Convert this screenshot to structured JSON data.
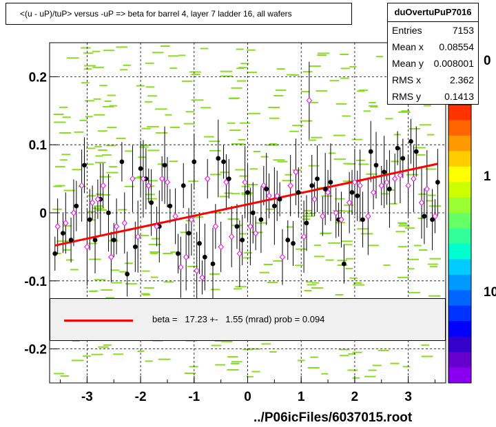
{
  "title": "<(u - uP)/tuP> versus  -uP => beta for barrel 4, layer 7 ladder 16, all wafers",
  "stats": {
    "name": "duOvertuPuP7016",
    "rows": [
      {
        "label": "Entries",
        "value": "7153"
      },
      {
        "label": "Mean x",
        "value": "0.08554"
      },
      {
        "label": "Mean y",
        "value": "0.008001"
      },
      {
        "label": "RMS x",
        "value": "2.362"
      },
      {
        "label": "RMS y",
        "value": "0.1413"
      }
    ]
  },
  "legend": {
    "text": "beta =   17.23 +-   1.55 (mrad) prob = 0.094",
    "line_color": "#ff0000"
  },
  "footer": "../P06icFiles/6037015.root",
  "chart_data": {
    "type": "scatter",
    "xlim": [
      -3.7,
      3.7
    ],
    "ylim": [
      -0.25,
      0.25
    ],
    "xticks": [
      -3,
      -2,
      -1,
      0,
      1,
      2,
      3
    ],
    "xtick_labels": [
      "-3",
      "-2",
      "-1",
      "0",
      "1",
      "2",
      "3"
    ],
    "yticks": [
      -0.2,
      -0.1,
      0,
      0.1,
      0.2
    ],
    "ytick_labels": [
      "-0.2",
      "-0.1",
      "0",
      "0.1",
      "0.2"
    ],
    "grid": true,
    "colorbar_labels": [
      "0",
      "1",
      "10"
    ],
    "fit_line": {
      "color": "#ff0000",
      "x": [
        -3.6,
        3.55
      ],
      "y": [
        -0.048,
        0.072
      ]
    },
    "series": [
      {
        "marker": "filled-circle",
        "color": "#000000",
        "x": [
          -3.6,
          -3.45,
          -3.3,
          -3.2,
          -3.05,
          -2.95,
          -2.85,
          -2.75,
          -2.6,
          -2.5,
          -2.35,
          -2.25,
          -2.1,
          -2.0,
          -1.9,
          -1.8,
          -1.65,
          -1.55,
          -1.45,
          -1.3,
          -1.2,
          -1.1,
          -1.0,
          -0.9,
          -0.8,
          -0.65,
          -0.55,
          -0.45,
          -0.35,
          -0.2,
          -0.1,
          0.0,
          0.1,
          0.25,
          0.35,
          0.5,
          0.6,
          0.75,
          0.85,
          0.95,
          1.1,
          1.2,
          1.3,
          1.45,
          1.55,
          1.7,
          1.8,
          1.95,
          2.05,
          2.15,
          2.3,
          2.4,
          2.55,
          2.65,
          2.8,
          2.9,
          3.05,
          3.15,
          3.3,
          3.45,
          3.55
        ],
        "y": [
          -0.06,
          -0.03,
          -0.04,
          0.01,
          0.07,
          -0.01,
          -0.04,
          0.02,
          0.0,
          -0.04,
          0.075,
          -0.09,
          -0.05,
          0.065,
          0.05,
          0.015,
          -0.02,
          0.07,
          0.01,
          -0.06,
          0.04,
          -0.03,
          0.075,
          -0.045,
          -0.065,
          -0.075,
          0.08,
          0.075,
          0.05,
          -0.02,
          -0.04,
          0.03,
          0.0,
          -0.01,
          0.035,
          0.01,
          0.02,
          -0.04,
          -0.045,
          0.03,
          -0.015,
          0.04,
          0.05,
          0.035,
          0.045,
          -0.01,
          -0.075,
          0.03,
          0.025,
          -0.01,
          0.09,
          0.07,
          0.06,
          0.035,
          0.095,
          0.08,
          0.105,
          0.09,
          -0.005,
          -0.01,
          0.045
        ]
      },
      {
        "marker": "open-diamond",
        "color": "#ee00ee",
        "x": [
          -3.55,
          -3.4,
          -3.25,
          -3.1,
          -3.0,
          -2.9,
          -2.8,
          -2.7,
          -2.55,
          -2.45,
          -2.3,
          -2.15,
          -2.05,
          -1.95,
          -1.85,
          -1.7,
          -1.6,
          -1.5,
          -1.35,
          -1.25,
          -1.15,
          -1.05,
          -0.95,
          -0.85,
          -0.75,
          -0.6,
          -0.5,
          -0.4,
          -0.3,
          -0.15,
          -0.05,
          0.05,
          0.15,
          0.3,
          0.4,
          0.55,
          0.65,
          0.8,
          0.9,
          1.05,
          1.15,
          1.25,
          1.4,
          1.5,
          1.65,
          1.75,
          1.9,
          2.0,
          2.1,
          2.25,
          2.35,
          2.5,
          2.6,
          2.75,
          2.85,
          3.0,
          3.1,
          3.25,
          3.35,
          3.5
        ],
        "y": [
          -0.02,
          -0.015,
          0.0,
          0.04,
          -0.05,
          0.015,
          0.02,
          0.04,
          -0.065,
          -0.02,
          -0.015,
          0.05,
          -0.035,
          0.05,
          0.04,
          -0.02,
          0.05,
          0.045,
          -0.005,
          -0.08,
          -0.065,
          -0.01,
          -0.085,
          -0.095,
          0.05,
          -0.02,
          -0.05,
          0.045,
          -0.035,
          -0.06,
          0.045,
          -0.02,
          -0.03,
          0.04,
          0.025,
          0.025,
          -0.065,
          0.04,
          0.06,
          -0.035,
          0.165,
          0.02,
          -0.005,
          0.03,
          0.0,
          -0.01,
          0.015,
          0.045,
          0.04,
          -0.005,
          0.03,
          0.04,
          0.045,
          0.05,
          0.055,
          0.04,
          0.05,
          0.015,
          0.035,
          -0.005
        ]
      }
    ]
  }
}
